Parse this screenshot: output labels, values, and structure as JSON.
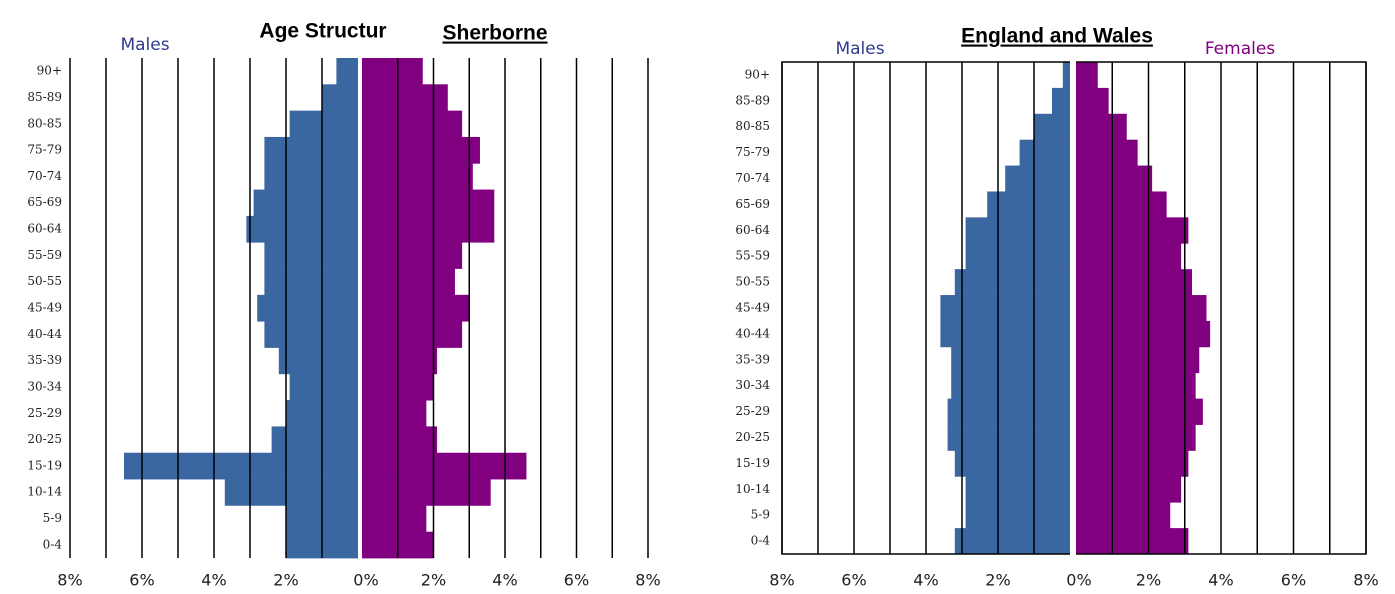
{
  "chart_data": [
    {
      "type": "pyramid",
      "title": "Age Structur",
      "subtitle": "Sherborne",
      "categories": [
        "0-4",
        "5-9",
        "10-14",
        "15-19",
        "20-25",
        "25-29",
        "30-34",
        "35-39",
        "40-44",
        "45-49",
        "50-55",
        "55-59",
        "60-64",
        "65-69",
        "70-74",
        "75-79",
        "80-85",
        "85-89",
        "90+"
      ],
      "series": [
        {
          "name": "Males",
          "color": "#3b67a1",
          "values": [
            2.0,
            2.0,
            3.7,
            6.5,
            2.4,
            2.0,
            1.9,
            2.2,
            2.6,
            2.8,
            2.6,
            2.6,
            3.1,
            2.9,
            2.6,
            2.6,
            1.9,
            1.0,
            0.6
          ]
        },
        {
          "color": "#800080",
          "values": [
            2.0,
            1.8,
            3.6,
            4.6,
            2.1,
            1.8,
            2.0,
            2.1,
            2.8,
            3.0,
            2.6,
            2.8,
            3.7,
            3.7,
            3.1,
            3.3,
            2.8,
            2.4,
            1.7
          ]
        }
      ],
      "xlim": [
        0,
        8
      ],
      "male_xticks": [
        {
          "value": 8,
          "label": "8%"
        },
        {
          "value": 6,
          "label": "6%"
        },
        {
          "value": 4,
          "label": "4%"
        },
        {
          "value": 2,
          "label": "2%"
        },
        {
          "value": 0,
          "label": "0%"
        }
      ],
      "female_xticks": [
        {
          "value": 2,
          "label": "2%"
        },
        {
          "value": 4,
          "label": "4%"
        },
        {
          "value": 6,
          "label": "6%"
        },
        {
          "value": 8,
          "label": "8%"
        }
      ],
      "xgrid": [
        1,
        2,
        3,
        4,
        5,
        6,
        7,
        8
      ],
      "border": false
    },
    {
      "type": "pyramid",
      "title": "England and Wales",
      "categories": [
        "0-4",
        "5-9",
        "10-14",
        "15-19",
        "20-25",
        "25-29",
        "30-34",
        "35-39",
        "40-44",
        "45-49",
        "50-55",
        "55-59",
        "60-64",
        "65-69",
        "70-74",
        "75-79",
        "80-85",
        "85-89",
        "90+"
      ],
      "series": [
        {
          "name": "Males",
          "color": "#3b67a1",
          "values": [
            3.2,
            2.9,
            2.9,
            3.2,
            3.4,
            3.4,
            3.3,
            3.3,
            3.6,
            3.6,
            3.2,
            2.9,
            2.9,
            2.3,
            1.8,
            1.4,
            1.0,
            0.5,
            0.2
          ]
        },
        {
          "name": "Females",
          "color": "#800080",
          "values": [
            3.1,
            2.6,
            2.9,
            3.1,
            3.3,
            3.5,
            3.3,
            3.4,
            3.7,
            3.6,
            3.2,
            2.9,
            3.1,
            2.5,
            2.1,
            1.7,
            1.4,
            0.9,
            0.6
          ]
        }
      ],
      "xlim": [
        0,
        8
      ],
      "male_xticks": [
        {
          "value": 8,
          "label": "8%"
        },
        {
          "value": 6,
          "label": "6%"
        },
        {
          "value": 4,
          "label": "4%"
        },
        {
          "value": 2,
          "label": "2%"
        },
        {
          "value": 0,
          "label": "0%"
        }
      ],
      "female_xticks": [
        {
          "value": 2,
          "label": "2%"
        },
        {
          "value": 4,
          "label": "4%"
        },
        {
          "value": 6,
          "label": "6%"
        },
        {
          "value": 8,
          "label": "8%"
        }
      ],
      "xgrid": [
        1,
        2,
        3,
        4,
        5,
        6,
        7,
        8
      ],
      "border": true
    }
  ]
}
